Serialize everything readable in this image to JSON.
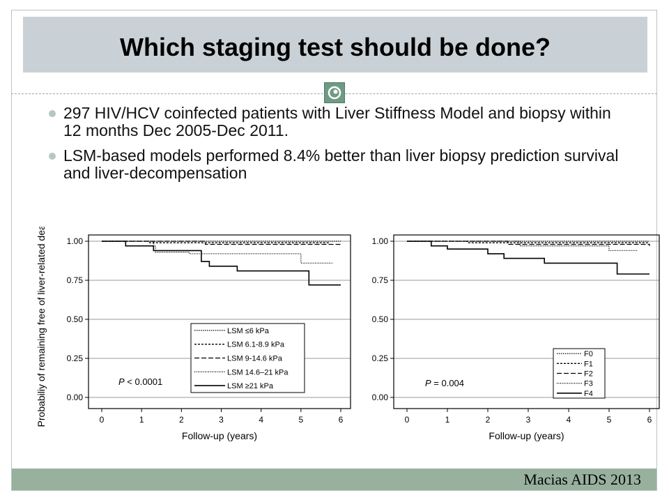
{
  "slide": {
    "title": "Which staging test should be done?",
    "citation": "Macias AIDS 2013",
    "bullets": [
      "297 HIV/HCV coinfected patients with Liver Stiffness Model and biopsy within 12 months Dec 2005-Dec 2011.",
      "LSM-based models performed 8.4% better than liver biopsy prediction survival and liver-decompensation"
    ],
    "colors": {
      "title_bar": "#c9d1d6",
      "footer_bar": "#98b19f",
      "bullet_dot": "#b3c9bd",
      "logo": "#6f9a83"
    },
    "logo_icon": "eye-logo-icon"
  },
  "chart_data": [
    {
      "type": "line",
      "step": true,
      "ylabel": "Probabiliy of remaining free of liver-related death",
      "xlabel": "Follow-up (years)",
      "xlim": [
        0,
        6
      ],
      "ylim": [
        0,
        1
      ],
      "xticks": [
        0,
        1,
        2,
        3,
        4,
        5,
        6
      ],
      "yticks": [
        0.0,
        0.25,
        0.5,
        0.75,
        1.0
      ],
      "ytick_labels": [
        "0.00",
        "0.25",
        "0.50",
        "0.75",
        "1.00"
      ],
      "grid": "horizontal",
      "legend_position": "bottom-right",
      "annotation": {
        "italic": "P",
        "text": " < 0.0001"
      },
      "series": [
        {
          "name": "LSM ≤6 kPa",
          "dash": "1.5,1.5",
          "x": [
            0,
            6
          ],
          "y": [
            1.0,
            1.0
          ]
        },
        {
          "name": "LSM 6.1-8.9 kPa",
          "dash": "3,2",
          "x": [
            0,
            1.2,
            1.4,
            5.0,
            5.7
          ],
          "y": [
            1.0,
            0.99,
            0.99,
            0.99,
            0.99
          ]
        },
        {
          "name": "LSM 9-14.6 kPa",
          "dash": "7,3",
          "x": [
            0,
            2.6,
            6
          ],
          "y": [
            1.0,
            0.98,
            0.98
          ]
        },
        {
          "name": "LSM 14.6–21 kPa",
          "dash": "1,1.5",
          "x": [
            0,
            1.3,
            1.35,
            2.2,
            5.0,
            5.8
          ],
          "y": [
            1.0,
            0.97,
            0.93,
            0.92,
            0.86,
            0.86
          ]
        },
        {
          "name": "LSM ≥21 kPa",
          "dash": "",
          "x": [
            0,
            0.6,
            1.3,
            2.5,
            2.7,
            3.4,
            5.2,
            6
          ],
          "y": [
            1.0,
            0.97,
            0.94,
            0.87,
            0.84,
            0.81,
            0.72,
            0.72
          ]
        }
      ]
    },
    {
      "type": "line",
      "step": true,
      "ylabel": "",
      "xlabel": "Follow-up (years)",
      "xlim": [
        0,
        6
      ],
      "ylim": [
        0,
        1
      ],
      "xticks": [
        0,
        1,
        2,
        3,
        4,
        5,
        6
      ],
      "yticks": [
        0.0,
        0.25,
        0.5,
        0.75,
        1.0
      ],
      "ytick_labels": [
        "0.00",
        "0.25",
        "0.50",
        "0.75",
        "1.00"
      ],
      "grid": "horizontal",
      "legend_position": "bottom-right",
      "annotation": {
        "italic": "P",
        "text": " = 0.004"
      },
      "series": [
        {
          "name": "F0",
          "dash": "1.5,1.5",
          "x": [
            0,
            6
          ],
          "y": [
            1.0,
            1.0
          ]
        },
        {
          "name": "F1",
          "dash": "3,2",
          "x": [
            0,
            1.5,
            6
          ],
          "y": [
            1.0,
            0.99,
            0.99
          ]
        },
        {
          "name": "F2",
          "dash": "7,3",
          "x": [
            0,
            2.5,
            6
          ],
          "y": [
            1.0,
            0.98,
            0.97
          ]
        },
        {
          "name": "F3",
          "dash": "1,1.5",
          "x": [
            0,
            2.8,
            5.0,
            5.7
          ],
          "y": [
            1.0,
            0.97,
            0.94,
            0.94
          ]
        },
        {
          "name": "F4",
          "dash": "",
          "x": [
            0,
            0.6,
            1.0,
            2.0,
            2.4,
            3.4,
            5.2,
            6
          ],
          "y": [
            1.0,
            0.97,
            0.95,
            0.92,
            0.89,
            0.86,
            0.79,
            0.79
          ]
        }
      ]
    }
  ]
}
